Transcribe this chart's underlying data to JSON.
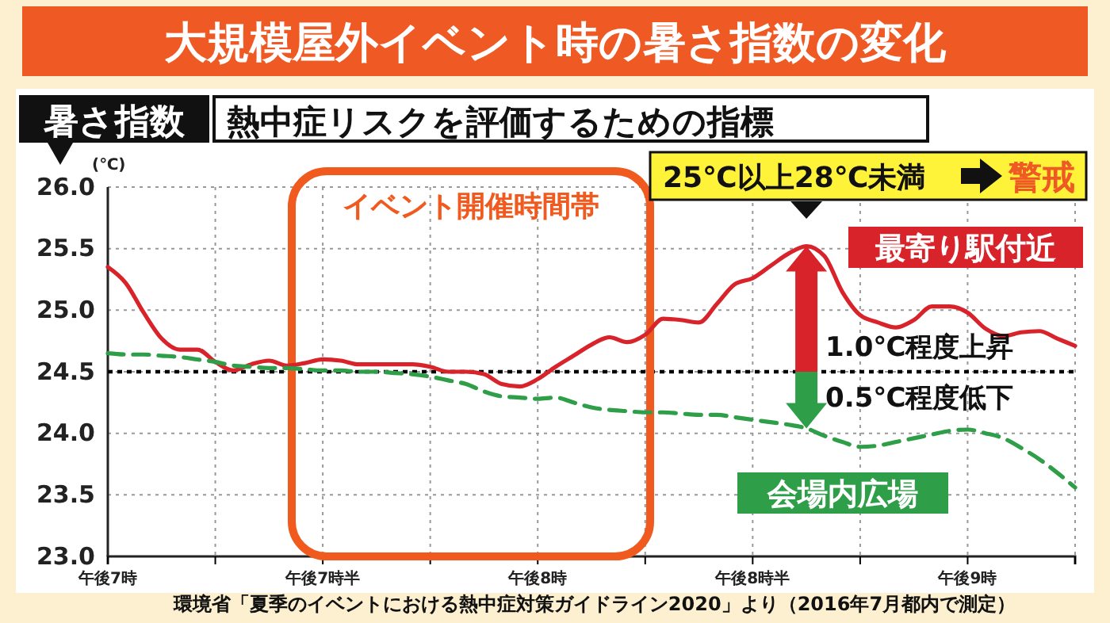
{
  "chart_data": {
    "type": "line",
    "title": "大規模屋外イベント時の暑さ指数の変化",
    "subtitle": "熱中症リスクを評価するための指標",
    "ylabel": "(℃)",
    "categories": [
      "午後7時",
      null,
      null,
      null,
      null,
      null,
      null,
      null,
      null,
      null,
      null,
      null,
      "午後7時半",
      null,
      null,
      null,
      null,
      null,
      null,
      null,
      null,
      null,
      null,
      null,
      "午後8時",
      null,
      null,
      null,
      null,
      null,
      null,
      null,
      null,
      null,
      null,
      null,
      "午後8時半",
      null,
      null,
      null,
      null,
      null,
      null,
      null,
      null,
      null,
      null,
      null,
      "午後9時",
      null,
      null,
      null,
      null,
      null,
      null
    ],
    "ylim": [
      23,
      26
    ],
    "yticks": [
      {
        "value": 23,
        "label": "23.0"
      },
      {
        "value": 23.5,
        "label": "23.5"
      },
      {
        "value": 24,
        "label": "24.0"
      },
      {
        "value": 24.5,
        "label": "24.5"
      },
      {
        "value": 25,
        "label": "25.0"
      },
      {
        "value": 25.5,
        "label": "25.5"
      },
      {
        "value": 26,
        "label": "26.0"
      }
    ],
    "grid": true,
    "series": [
      {
        "name": "最寄り駅付近",
        "color": "#d9232a",
        "line_style": "solid",
        "values": [
          25.35,
          25.22,
          24.98,
          24.77,
          24.68,
          24.68,
          24.58,
          24.51,
          24.56,
          24.59,
          24.55,
          24.57,
          24.6,
          24.59,
          24.56,
          24.56,
          24.56,
          24.56,
          24.54,
          24.5,
          24.5,
          24.48,
          24.4,
          24.38,
          24.44,
          24.54,
          24.63,
          24.72,
          24.78,
          24.74,
          24.8,
          24.93,
          24.92,
          24.9,
          25.05,
          25.21,
          25.26,
          25.36,
          25.46,
          25.52,
          25.44,
          25.15,
          24.96,
          24.9,
          24.86,
          24.92,
          25.03,
          25.03,
          24.98,
          24.85,
          24.79,
          24.82,
          24.83,
          24.77,
          24.71
        ]
      },
      {
        "name": "会場内広場",
        "color": "#2e9e48",
        "line_style": "dashed",
        "values": [
          24.65,
          24.64,
          24.64,
          24.63,
          24.62,
          24.6,
          24.58,
          24.55,
          24.54,
          24.53,
          24.53,
          24.52,
          24.51,
          24.51,
          24.5,
          24.5,
          24.49,
          24.48,
          24.46,
          24.43,
          24.4,
          24.34,
          24.3,
          24.29,
          24.28,
          24.29,
          24.25,
          24.21,
          24.19,
          24.18,
          24.17,
          24.17,
          24.16,
          24.15,
          24.15,
          24.13,
          24.11,
          24.09,
          24.07,
          24.04,
          23.98,
          23.93,
          23.89,
          23.9,
          23.93,
          23.96,
          23.99,
          24.02,
          24.03,
          24,
          23.96,
          23.88,
          23.79,
          23.68,
          23.56
        ]
      }
    ],
    "ref_lines": [
      {
        "axis": "y",
        "value": 24.5,
        "color": "#000000",
        "line_style": "dotted"
      }
    ],
    "annotations": [
      "暑さ指数",
      "25℃以上28℃未満",
      "警戒",
      "イベント開催時間帯",
      "1.0℃程度上昇",
      "0.5℃程度低下",
      "環境省「夏季のイベントにおける熱中症対策ガイドライン2020」より（2016年7月都内で測定）"
    ]
  }
}
